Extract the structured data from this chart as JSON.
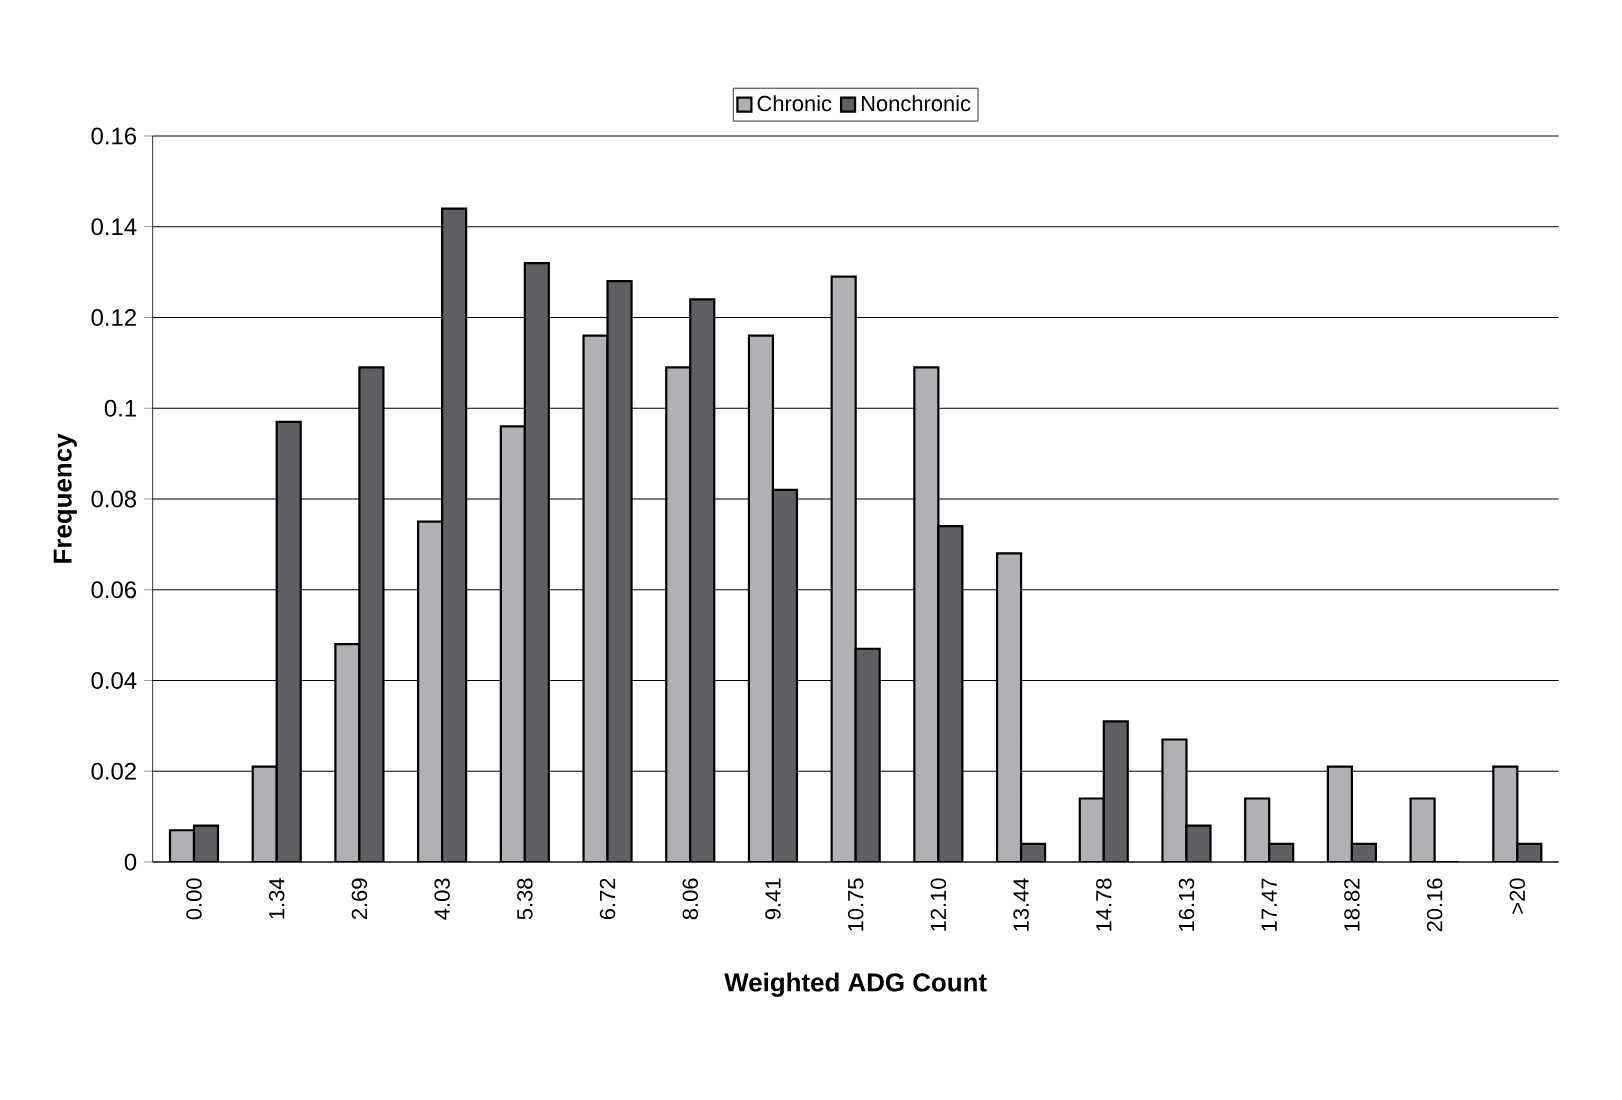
{
  "chart_data": {
    "type": "bar",
    "xlabel": "Weighted ADG Count",
    "ylabel": "Frequency",
    "categories": [
      "0.00",
      "1.34",
      "2.69",
      "4.03",
      "5.38",
      "6.72",
      "8.06",
      "9.41",
      "10.75",
      "12.10",
      "13.44",
      "14.78",
      "16.13",
      "17.47",
      "18.82",
      "20.16",
      ">20"
    ],
    "series": [
      {
        "name": "Chronic",
        "color": "#b0b1b5",
        "values": [
          0.007,
          0.021,
          0.048,
          0.075,
          0.096,
          0.116,
          0.109,
          0.116,
          0.129,
          0.109,
          0.068,
          0.014,
          0.027,
          0.014,
          0.021,
          0.014,
          0.021
        ]
      },
      {
        "name": "Nonchronic",
        "color": "#606064",
        "values": [
          0.008,
          0.097,
          0.109,
          0.144,
          0.132,
          0.128,
          0.124,
          0.082,
          0.047,
          0.074,
          0.004,
          0.031,
          0.008,
          0.004,
          0.004,
          0,
          0.004
        ]
      }
    ],
    "ylim": [
      0,
      0.16
    ],
    "yticks": [
      0,
      0.02,
      0.04,
      0.06,
      0.08,
      0.1,
      0.12,
      0.14,
      0.16
    ],
    "grid": "y",
    "legend": "top"
  }
}
